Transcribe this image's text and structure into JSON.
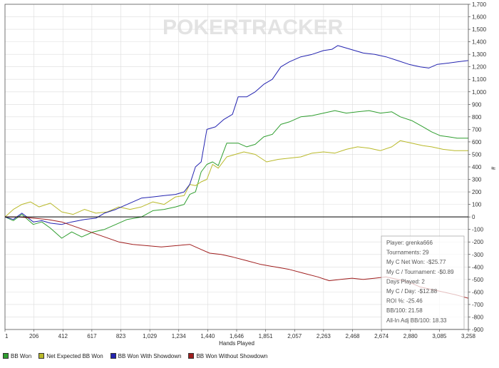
{
  "chart_data": {
    "type": "line",
    "watermark": "POKERTRACKER",
    "xlabel": "Hands Played",
    "ylabel": "#",
    "xlim": [
      1,
      3258
    ],
    "ylim": [
      -900,
      1700
    ],
    "x_ticks": [
      "1",
      "206",
      "412",
      "617",
      "823",
      "1,029",
      "1,234",
      "1,440",
      "1,646",
      "1,851",
      "2,057",
      "2,263",
      "2,468",
      "2,674",
      "2,880",
      "3,085",
      "3,258"
    ],
    "y_ticks": [
      "1,700",
      "1,600",
      "1,500",
      "1,400",
      "1,300",
      "1,200",
      "1,100",
      "1,000",
      "900",
      "800",
      "700",
      "600",
      "500",
      "400",
      "300",
      "200",
      "100",
      "0",
      "-100",
      "-200",
      "-300",
      "-400",
      "-500",
      "-600",
      "-700",
      "-800",
      "-900"
    ],
    "series": [
      {
        "name": "BB Won",
        "color": "#2f9e2f",
        "points": [
          [
            1,
            0
          ],
          [
            60,
            -30
          ],
          [
            120,
            20
          ],
          [
            200,
            -60
          ],
          [
            260,
            -40
          ],
          [
            320,
            -90
          ],
          [
            400,
            -170
          ],
          [
            470,
            -120
          ],
          [
            540,
            -160
          ],
          [
            620,
            -120
          ],
          [
            700,
            -100
          ],
          [
            780,
            -60
          ],
          [
            860,
            -20
          ],
          [
            960,
            0
          ],
          [
            1040,
            50
          ],
          [
            1120,
            60
          ],
          [
            1200,
            80
          ],
          [
            1260,
            100
          ],
          [
            1300,
            180
          ],
          [
            1340,
            200
          ],
          [
            1380,
            360
          ],
          [
            1420,
            420
          ],
          [
            1460,
            440
          ],
          [
            1500,
            410
          ],
          [
            1560,
            590
          ],
          [
            1640,
            590
          ],
          [
            1700,
            560
          ],
          [
            1760,
            580
          ],
          [
            1820,
            640
          ],
          [
            1880,
            660
          ],
          [
            1940,
            740
          ],
          [
            2000,
            760
          ],
          [
            2080,
            800
          ],
          [
            2160,
            810
          ],
          [
            2240,
            830
          ],
          [
            2320,
            850
          ],
          [
            2400,
            830
          ],
          [
            2480,
            840
          ],
          [
            2560,
            850
          ],
          [
            2640,
            830
          ],
          [
            2720,
            840
          ],
          [
            2780,
            800
          ],
          [
            2860,
            770
          ],
          [
            2940,
            720
          ],
          [
            3000,
            680
          ],
          [
            3060,
            650
          ],
          [
            3120,
            640
          ],
          [
            3180,
            630
          ],
          [
            3258,
            630
          ]
        ]
      },
      {
        "name": "Net Expected BB Won",
        "color": "#b9b929",
        "points": [
          [
            1,
            0
          ],
          [
            60,
            60
          ],
          [
            120,
            100
          ],
          [
            180,
            120
          ],
          [
            240,
            80
          ],
          [
            320,
            110
          ],
          [
            400,
            40
          ],
          [
            480,
            20
          ],
          [
            560,
            60
          ],
          [
            640,
            30
          ],
          [
            720,
            40
          ],
          [
            800,
            80
          ],
          [
            880,
            60
          ],
          [
            960,
            80
          ],
          [
            1040,
            120
          ],
          [
            1120,
            100
          ],
          [
            1200,
            160
          ],
          [
            1260,
            170
          ],
          [
            1300,
            260
          ],
          [
            1340,
            250
          ],
          [
            1380,
            280
          ],
          [
            1420,
            300
          ],
          [
            1460,
            420
          ],
          [
            1500,
            390
          ],
          [
            1560,
            480
          ],
          [
            1620,
            500
          ],
          [
            1680,
            520
          ],
          [
            1760,
            500
          ],
          [
            1840,
            440
          ],
          [
            1920,
            460
          ],
          [
            2000,
            470
          ],
          [
            2080,
            480
          ],
          [
            2160,
            510
          ],
          [
            2240,
            520
          ],
          [
            2320,
            510
          ],
          [
            2400,
            540
          ],
          [
            2480,
            560
          ],
          [
            2560,
            550
          ],
          [
            2640,
            530
          ],
          [
            2720,
            560
          ],
          [
            2780,
            610
          ],
          [
            2860,
            590
          ],
          [
            2940,
            570
          ],
          [
            3000,
            560
          ],
          [
            3080,
            540
          ],
          [
            3160,
            530
          ],
          [
            3258,
            530
          ]
        ]
      },
      {
        "name": "BB Won With Showdown",
        "color": "#2323b0",
        "points": [
          [
            1,
            0
          ],
          [
            60,
            -20
          ],
          [
            120,
            30
          ],
          [
            200,
            -40
          ],
          [
            260,
            -30
          ],
          [
            320,
            -50
          ],
          [
            400,
            -60
          ],
          [
            470,
            -40
          ],
          [
            560,
            -20
          ],
          [
            640,
            -10
          ],
          [
            700,
            30
          ],
          [
            780,
            60
          ],
          [
            860,
            100
          ],
          [
            960,
            150
          ],
          [
            1040,
            160
          ],
          [
            1120,
            170
          ],
          [
            1200,
            180
          ],
          [
            1260,
            200
          ],
          [
            1300,
            260
          ],
          [
            1340,
            400
          ],
          [
            1380,
            440
          ],
          [
            1420,
            700
          ],
          [
            1480,
            720
          ],
          [
            1540,
            780
          ],
          [
            1600,
            820
          ],
          [
            1640,
            960
          ],
          [
            1700,
            960
          ],
          [
            1760,
            1000
          ],
          [
            1820,
            1060
          ],
          [
            1880,
            1100
          ],
          [
            1940,
            1200
          ],
          [
            2000,
            1240
          ],
          [
            2080,
            1280
          ],
          [
            2160,
            1300
          ],
          [
            2240,
            1330
          ],
          [
            2300,
            1340
          ],
          [
            2340,
            1370
          ],
          [
            2400,
            1350
          ],
          [
            2460,
            1330
          ],
          [
            2520,
            1310
          ],
          [
            2600,
            1300
          ],
          [
            2680,
            1280
          ],
          [
            2760,
            1250
          ],
          [
            2840,
            1220
          ],
          [
            2920,
            1200
          ],
          [
            2980,
            1190
          ],
          [
            3040,
            1220
          ],
          [
            3120,
            1230
          ],
          [
            3180,
            1240
          ],
          [
            3258,
            1250
          ]
        ]
      },
      {
        "name": "BB Won Without Showdown",
        "color": "#a01e1e",
        "points": [
          [
            1,
            0
          ],
          [
            100,
            0
          ],
          [
            200,
            -10
          ],
          [
            300,
            -20
          ],
          [
            400,
            -40
          ],
          [
            500,
            -80
          ],
          [
            600,
            -120
          ],
          [
            700,
            -160
          ],
          [
            800,
            -200
          ],
          [
            900,
            -220
          ],
          [
            1000,
            -230
          ],
          [
            1100,
            -240
          ],
          [
            1200,
            -230
          ],
          [
            1300,
            -220
          ],
          [
            1380,
            -260
          ],
          [
            1440,
            -290
          ],
          [
            1520,
            -300
          ],
          [
            1600,
            -320
          ],
          [
            1700,
            -350
          ],
          [
            1800,
            -380
          ],
          [
            1900,
            -400
          ],
          [
            2000,
            -420
          ],
          [
            2100,
            -450
          ],
          [
            2200,
            -480
          ],
          [
            2280,
            -510
          ],
          [
            2360,
            -500
          ],
          [
            2440,
            -490
          ],
          [
            2520,
            -500
          ],
          [
            2600,
            -490
          ],
          [
            2680,
            -480
          ],
          [
            2760,
            -500
          ],
          [
            2840,
            -520
          ],
          [
            2920,
            -560
          ],
          [
            3000,
            -580
          ],
          [
            3080,
            -600
          ],
          [
            3160,
            -620
          ],
          [
            3258,
            -650
          ]
        ]
      }
    ]
  },
  "info_box": {
    "lines": [
      "Player: grenka666",
      "Tournaments: 29",
      "My C Net Won: -$25.77",
      "My C / Tournament: -$0.89",
      "Days Played: 2",
      "My C / Day: -$12.88",
      "ROI %: -25.46",
      "BB/100: 21.58",
      "All-In Adj BB/100: 18.33"
    ]
  },
  "legend": [
    {
      "label": "BB Won",
      "color": "#2f9e2f"
    },
    {
      "label": "Net Expected BB Won",
      "color": "#b9b929"
    },
    {
      "label": "BB Won With Showdown",
      "color": "#2323b0"
    },
    {
      "label": "BB Won Without Showdown",
      "color": "#a01e1e"
    }
  ]
}
